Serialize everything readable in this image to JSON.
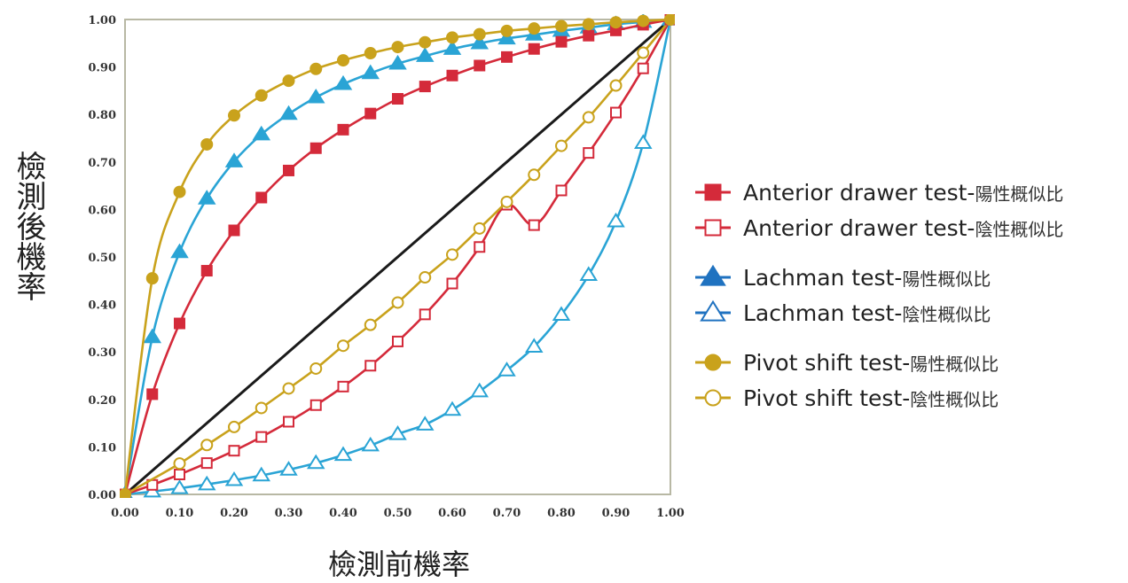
{
  "chart_data": {
    "type": "line",
    "xlabel": "檢測前機率",
    "ylabel": "檢測後機率",
    "xlim": [
      0,
      1
    ],
    "ylim": [
      0,
      1
    ],
    "x_ticks": [
      "0.00",
      "0.10",
      "0.20",
      "0.30",
      "0.40",
      "0.50",
      "0.60",
      "0.70",
      "0.80",
      "0.90",
      "1.00"
    ],
    "y_ticks": [
      "0.00",
      "0.10",
      "0.20",
      "0.30",
      "0.40",
      "0.50",
      "0.60",
      "0.70",
      "0.80",
      "0.90",
      "1.00"
    ],
    "legend_position": "right",
    "reference_line": {
      "x": [
        0,
        1
      ],
      "y": [
        0,
        1
      ],
      "color": "#1a1a1a"
    },
    "series": [
      {
        "name": "Anterior drawer test-",
        "suffix": "陽性概似比",
        "color": "#d42a3a",
        "marker": "square",
        "filled": true,
        "x": [
          0,
          0.05,
          0.1,
          0.15,
          0.2,
          0.25,
          0.3,
          0.35,
          0.4,
          0.45,
          0.5,
          0.55,
          0.6,
          0.65,
          0.7,
          0.75,
          0.8,
          0.85,
          0.9,
          0.95,
          1
        ],
        "y": [
          0,
          0.211,
          0.36,
          0.471,
          0.556,
          0.625,
          0.682,
          0.729,
          0.768,
          0.802,
          0.833,
          0.859,
          0.882,
          0.903,
          0.921,
          0.938,
          0.953,
          0.966,
          0.977,
          0.989,
          1
        ]
      },
      {
        "name": "Anterior drawer test-",
        "suffix": "陰性概似比",
        "color": "#d42a3a",
        "marker": "square",
        "filled": false,
        "x": [
          0,
          0.05,
          0.1,
          0.15,
          0.2,
          0.25,
          0.3,
          0.35,
          0.4,
          0.45,
          0.5,
          0.55,
          0.6,
          0.65,
          0.7,
          0.75,
          0.8,
          0.85,
          0.9,
          0.95,
          1
        ],
        "y": [
          0,
          0.02,
          0.042,
          0.066,
          0.092,
          0.121,
          0.153,
          0.188,
          0.227,
          0.271,
          0.322,
          0.379,
          0.444,
          0.521,
          0.61,
          0.567,
          0.64,
          0.719,
          0.804,
          0.897,
          1
        ]
      },
      {
        "name": "Lachman test-",
        "suffix": "陽性概似比",
        "color": "#2aa4d5",
        "marker": "triangle",
        "filled": true,
        "x": [
          0,
          0.05,
          0.1,
          0.15,
          0.2,
          0.25,
          0.3,
          0.35,
          0.4,
          0.45,
          0.5,
          0.55,
          0.6,
          0.65,
          0.7,
          0.75,
          0.8,
          0.85,
          0.9,
          0.95,
          1
        ],
        "y": [
          0,
          0.331,
          0.51,
          0.623,
          0.701,
          0.758,
          0.801,
          0.836,
          0.864,
          0.887,
          0.907,
          0.923,
          0.938,
          0.95,
          0.96,
          0.968,
          0.976,
          0.983,
          0.99,
          0.995,
          1
        ]
      },
      {
        "name": "Lachman test-",
        "suffix": "陰性概似比",
        "color": "#2aa4d5",
        "marker": "triangle",
        "filled": false,
        "x": [
          0,
          0.05,
          0.1,
          0.15,
          0.2,
          0.25,
          0.3,
          0.35,
          0.4,
          0.45,
          0.5,
          0.55,
          0.6,
          0.65,
          0.7,
          0.75,
          0.8,
          0.85,
          0.9,
          0.95,
          1
        ],
        "y": [
          0,
          0.006,
          0.013,
          0.021,
          0.03,
          0.04,
          0.052,
          0.066,
          0.083,
          0.103,
          0.127,
          0.147,
          0.178,
          0.217,
          0.261,
          0.311,
          0.378,
          0.462,
          0.575,
          0.74,
          1
        ]
      },
      {
        "name": "Pivot shift test-",
        "suffix": "陽性概似比",
        "color": "#c9a21c",
        "marker": "circle",
        "filled": true,
        "x": [
          0,
          0.05,
          0.1,
          0.15,
          0.2,
          0.25,
          0.3,
          0.35,
          0.4,
          0.45,
          0.5,
          0.55,
          0.6,
          0.65,
          0.7,
          0.75,
          0.8,
          0.85,
          0.9,
          0.95,
          1
        ],
        "y": [
          0,
          0.455,
          0.637,
          0.737,
          0.798,
          0.84,
          0.871,
          0.896,
          0.914,
          0.929,
          0.942,
          0.952,
          0.962,
          0.969,
          0.976,
          0.981,
          0.986,
          0.99,
          0.994,
          0.997,
          1
        ]
      },
      {
        "name": "Pivot shift test-",
        "suffix": "陰性概似比",
        "color": "#c9a21c",
        "marker": "circle",
        "filled": false,
        "x": [
          0,
          0.1,
          0.15,
          0.2,
          0.25,
          0.3,
          0.35,
          0.4,
          0.45,
          0.5,
          0.55,
          0.6,
          0.65,
          0.7,
          0.75,
          0.8,
          0.85,
          0.9,
          0.95,
          1
        ],
        "y": [
          0,
          0.065,
          0.104,
          0.142,
          0.182,
          0.223,
          0.265,
          0.313,
          0.357,
          0.404,
          0.457,
          0.505,
          0.56,
          0.616,
          0.673,
          0.734,
          0.794,
          0.861,
          0.93,
          1
        ]
      }
    ]
  }
}
